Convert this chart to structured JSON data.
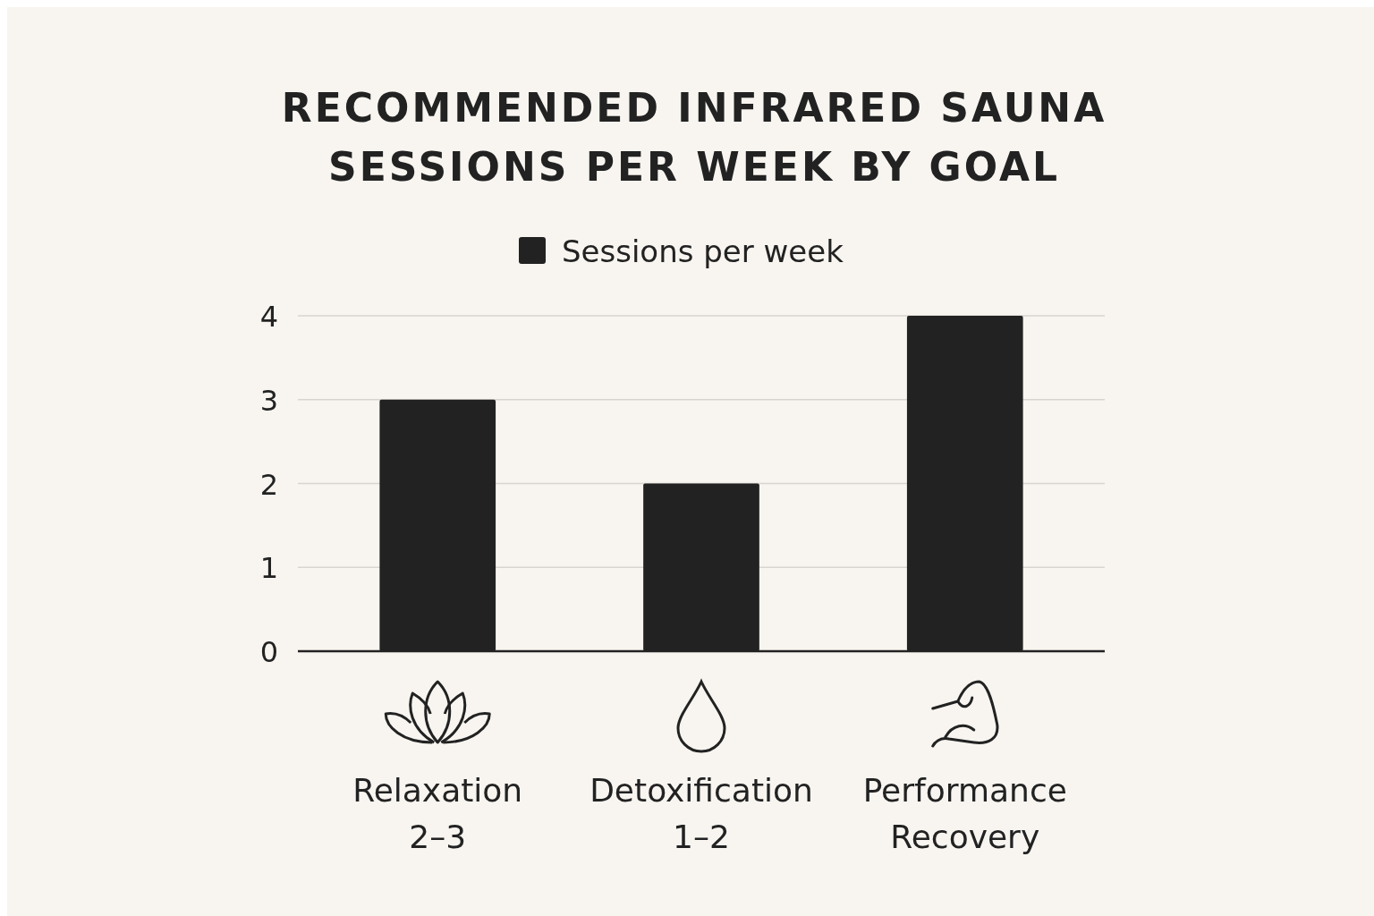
{
  "chart_data": {
    "type": "bar",
    "title": "RECOMMENDED INFRARED SAUNA\nSESSIONS PER WEEK BY GOAL",
    "categories": [
      "Relaxation\n2–3",
      "Detoxification\n1–2",
      "Performance\nRecovery"
    ],
    "series": [
      {
        "name": "Sessions per week",
        "color": "#222222",
        "values": [
          3,
          2,
          4
        ]
      }
    ],
    "ylim": [
      0,
      4
    ],
    "yticks": [
      0,
      1,
      2,
      3,
      4
    ],
    "grid": "y",
    "legend": "top"
  }
}
